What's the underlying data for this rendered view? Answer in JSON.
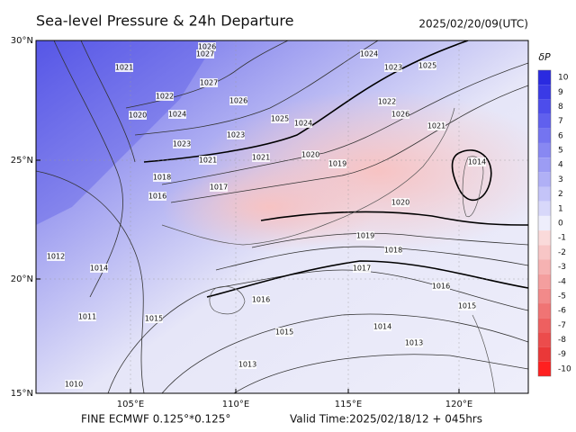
{
  "header": {
    "title": "Sea-level Pressure & 24h Departure",
    "timestamp": "2025/02/20/09(UTC)"
  },
  "map": {
    "lat_labels": [
      "30°N",
      "25°N",
      "20°N",
      "15°N"
    ],
    "lon_labels": [
      "105°E",
      "110°E",
      "115°E",
      "120°E"
    ],
    "contour_labels": [
      1026,
      1027,
      1021,
      1022,
      1024,
      1020,
      1026,
      1025,
      1024,
      1023,
      1023,
      1021,
      1021,
      1020,
      1019,
      1018,
      1017,
      1016,
      1014,
      1013,
      1012,
      1011,
      1010,
      1015,
      1016,
      1017,
      1018,
      1019,
      1016,
      1015,
      1014,
      1013,
      1015,
      1014,
      1020,
      1021,
      1022,
      1023,
      1024,
      1025,
      1026,
      1027
    ]
  },
  "colorbar": {
    "title": "δP",
    "values": [
      10,
      9,
      8,
      7,
      6,
      5,
      4,
      3,
      2,
      1,
      0,
      -1,
      -2,
      -3,
      -4,
      -5,
      -6,
      -7,
      -8,
      -9,
      -10
    ],
    "colors": [
      "#2a2ae0",
      "#3a3ae6",
      "#4d4deb",
      "#6060ee",
      "#7474f0",
      "#8888f2",
      "#9c9cf4",
      "#b0b0f6",
      "#c4c4f8",
      "#d8d8fa",
      "#eeeefc",
      "#fadada",
      "#f8c6c6",
      "#f6b2b2",
      "#f49e9e",
      "#f28a8a",
      "#f07474",
      "#ee6060",
      "#ec4c4c",
      "#ea3838",
      "#ff2020"
    ]
  },
  "footer": {
    "model": "FINE ECMWF 0.125°*0.125°",
    "valid_time": "Valid Time:2025/02/18/12 + 045hrs"
  }
}
